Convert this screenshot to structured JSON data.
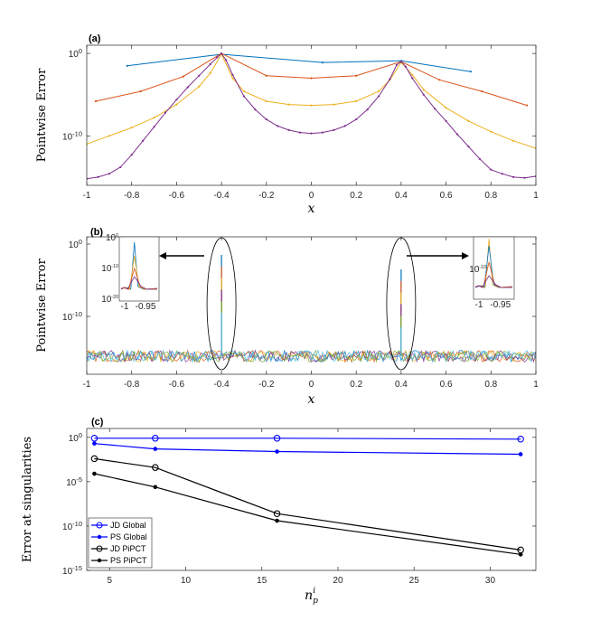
{
  "chart_data": [
    {
      "panel": "(a)",
      "type": "line",
      "xlabel": "x",
      "ylabel": "Pointwise Error",
      "xlim": [
        -1,
        1
      ],
      "ylim_log10": [
        -16,
        1
      ],
      "yscale": "log",
      "xticks": [
        -1,
        -0.8,
        -0.6,
        -0.4,
        -0.2,
        0,
        0.2,
        0.4,
        0.6,
        0.8,
        1
      ],
      "xtick_labels": [
        "-1",
        "-0.8",
        "-0.6",
        "-0.4",
        "-0.2",
        "0",
        "0.2",
        "0.4",
        "0.6",
        "0.8",
        "1"
      ],
      "yticks_log10": [
        0,
        -10
      ],
      "ytick_bases": [
        "10",
        "10"
      ],
      "ytick_exponents": [
        "0",
        "-10"
      ],
      "series": [
        {
          "name": "s1",
          "color": "#0072BD",
          "x": [
            -0.82,
            -0.4,
            0.05,
            0.4,
            0.71
          ],
          "log10_y": [
            -1.5,
            -0.1,
            -1.1,
            -0.9,
            -2.2
          ]
        },
        {
          "name": "s2",
          "color": "#D95319",
          "x": [
            -0.96,
            -0.76,
            -0.57,
            -0.4,
            -0.2,
            0,
            0.2,
            0.4,
            0.57,
            0.76,
            0.96
          ],
          "log10_y": [
            -5.8,
            -4.6,
            -2.8,
            0,
            -2.7,
            -3.0,
            -2.7,
            -1.0,
            -3.2,
            -4.6,
            -6.3
          ]
        },
        {
          "name": "s3",
          "color": "#EDB120",
          "x": [
            -1.0,
            -0.9,
            -0.8,
            -0.7,
            -0.6,
            -0.5,
            -0.45,
            -0.4,
            -0.35,
            -0.3,
            -0.2,
            -0.1,
            0,
            0.1,
            0.2,
            0.3,
            0.35,
            0.4,
            0.45,
            0.5,
            0.6,
            0.7,
            0.8,
            0.9,
            1.0
          ],
          "log10_y": [
            -11.0,
            -10.0,
            -9.0,
            -7.8,
            -6.2,
            -4.0,
            -2.4,
            -0.1,
            -3.0,
            -4.6,
            -5.8,
            -6.2,
            -6.3,
            -6.2,
            -5.8,
            -4.6,
            -3.2,
            -1.1,
            -2.6,
            -4.4,
            -6.6,
            -8.2,
            -9.5,
            -10.6,
            -11.5
          ]
        },
        {
          "name": "s4",
          "color": "#7E2F8E",
          "x": [
            -1.0,
            -0.95,
            -0.9,
            -0.85,
            -0.8,
            -0.75,
            -0.7,
            -0.65,
            -0.6,
            -0.55,
            -0.5,
            -0.45,
            -0.42,
            -0.4,
            -0.38,
            -0.35,
            -0.3,
            -0.25,
            -0.2,
            -0.15,
            -0.1,
            -0.05,
            0,
            0.05,
            0.1,
            0.15,
            0.2,
            0.25,
            0.3,
            0.35,
            0.38,
            0.4,
            0.42,
            0.45,
            0.5,
            0.55,
            0.6,
            0.65,
            0.7,
            0.75,
            0.8,
            0.85,
            0.9,
            0.95,
            1.0
          ],
          "log10_y": [
            -15.2,
            -15.0,
            -14.6,
            -13.8,
            -12.3,
            -10.6,
            -8.9,
            -7.2,
            -5.6,
            -4.1,
            -2.7,
            -1.3,
            -0.5,
            0,
            -0.8,
            -2.6,
            -5.2,
            -6.8,
            -8.0,
            -8.8,
            -9.3,
            -9.6,
            -9.7,
            -9.6,
            -9.3,
            -8.8,
            -8.0,
            -6.8,
            -5.2,
            -3.1,
            -1.4,
            -1.0,
            -1.6,
            -3.0,
            -5.0,
            -6.7,
            -8.2,
            -9.8,
            -11.3,
            -12.8,
            -14.1,
            -14.6,
            -15.0,
            -15.1,
            -14.9
          ]
        }
      ]
    },
    {
      "panel": "(b)",
      "type": "line",
      "xlabel": "x",
      "ylabel": "Pointwise Error",
      "xlim": [
        -1,
        1
      ],
      "ylim_log10": [
        -18,
        1
      ],
      "yscale": "log",
      "xticks": [
        -1,
        -0.8,
        -0.6,
        -0.4,
        -0.2,
        0,
        0.2,
        0.4,
        0.6,
        0.8,
        1
      ],
      "xtick_labels": [
        "-1",
        "-0.8",
        "-0.6",
        "-0.4",
        "-0.2",
        "0",
        "0.2",
        "0.4",
        "0.6",
        "0.8",
        "1"
      ],
      "yticks_log10": [
        0,
        -10
      ],
      "ytick_bases": [
        "10",
        "10"
      ],
      "ytick_exponents": [
        "0",
        "-10"
      ],
      "noise_floor_log10": -15.5,
      "spikes": [
        {
          "x": -0.4,
          "peak_log10": -1.5
        },
        {
          "x": 0.4,
          "peak_log10": -3.5
        }
      ],
      "series": [
        {
          "name": "s1",
          "color": "#0072BD"
        },
        {
          "name": "s2",
          "color": "#D95319"
        },
        {
          "name": "s3",
          "color": "#EDB120"
        },
        {
          "name": "s4",
          "color": "#7E2F8E"
        },
        {
          "name": "s5",
          "color": "#77AC30"
        },
        {
          "name": "s6",
          "color": "#4DBEEE"
        }
      ],
      "insets": [
        {
          "xticks": [
            "-1",
            "-0.95"
          ],
          "ytick_bases": [
            "10",
            "10",
            "10"
          ],
          "ytick_exponents": [
            "0",
            "-10",
            "-20"
          ]
        },
        {
          "xticks": [
            "-1",
            "-0.95"
          ],
          "ytick_bases": [
            "10"
          ],
          "ytick_exponents": [
            "-10"
          ]
        }
      ]
    },
    {
      "panel": "(c)",
      "type": "line",
      "xlabel": "n",
      "xlabel_sub": "p",
      "xlabel_sup": "i",
      "ylabel": "Error at singularities",
      "xlim": [
        3.5,
        33
      ],
      "ylim_log10": [
        -15,
        1
      ],
      "yscale": "log",
      "xticks": [
        5,
        10,
        15,
        20,
        25,
        30
      ],
      "xtick_labels": [
        "5",
        "10",
        "15",
        "20",
        "25",
        "30"
      ],
      "yticks_log10": [
        0,
        -5,
        -10,
        -15
      ],
      "ytick_bases": [
        "10",
        "10",
        "10",
        "10"
      ],
      "ytick_exponents": [
        "0",
        "-5",
        "-10",
        "-15"
      ],
      "legend_position": "lower-left",
      "series": [
        {
          "name": "JD Global",
          "color": "#0000FF",
          "marker": "open-circle",
          "x": [
            4,
            8,
            16,
            32
          ],
          "log10_y": [
            -0.1,
            -0.1,
            -0.1,
            -0.2
          ]
        },
        {
          "name": "PS Global",
          "color": "#0000FF",
          "marker": "filled-star",
          "x": [
            4,
            8,
            16,
            32
          ],
          "log10_y": [
            -0.7,
            -1.3,
            -1.6,
            -1.9
          ]
        },
        {
          "name": "JD PiPCT",
          "color": "#000000",
          "marker": "open-circle",
          "x": [
            4,
            8,
            16,
            32
          ],
          "log10_y": [
            -2.4,
            -3.4,
            -8.6,
            -12.7
          ]
        },
        {
          "name": "PS PiPCT",
          "color": "#000000",
          "marker": "filled-star",
          "x": [
            4,
            8,
            16,
            32
          ],
          "log10_y": [
            -4.1,
            -5.6,
            -9.4,
            -13.2
          ]
        }
      ]
    }
  ]
}
